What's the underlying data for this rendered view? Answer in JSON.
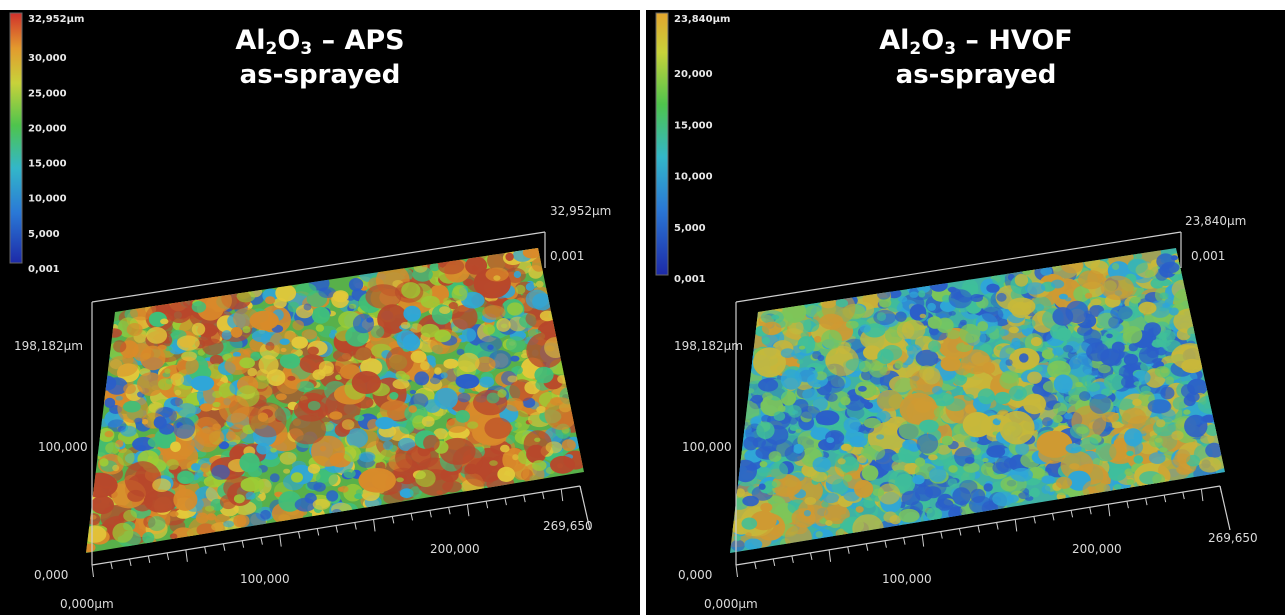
{
  "panels": [
    {
      "title_prefix": "Al",
      "title_sub1": "2",
      "title_mid": "O",
      "title_sub2": "3",
      "title_suffix": " – APS",
      "title_line2": "as-sprayed",
      "colorbar": {
        "max": "32,952µm",
        "ticks": [
          "30,000",
          "25,000",
          "20,000",
          "15,000",
          "10,000",
          "5,000",
          "0,001"
        ]
      },
      "axis": {
        "z_top": "32,952µm",
        "z_bottom": "0,001",
        "y_max": "198,182µm",
        "y_mid": "100,000",
        "y_min": "0,000",
        "x_origin": "0,000µm",
        "x_mid": "100,000",
        "x_200": "200,000",
        "x_max": "269,650"
      },
      "surface_palette": [
        "#2b5fc9",
        "#2fa6d8",
        "#3fbf7a",
        "#9dcc35",
        "#e3c83a",
        "#d98a2a",
        "#b8472b"
      ],
      "surface_mean_level": 0.55
    },
    {
      "title_prefix": "Al",
      "title_sub1": "2",
      "title_mid": "O",
      "title_sub2": "3",
      "title_suffix": " – HVOF",
      "title_line2": "as-sprayed",
      "colorbar": {
        "max": "23,840µm",
        "ticks": [
          "20,000",
          "15,000",
          "10,000",
          "5,000",
          "0,001"
        ]
      },
      "axis": {
        "z_top": "23,840µm",
        "z_bottom": "0,001",
        "y_max": "198,182µm",
        "y_mid": "100,000",
        "y_min": "0,000",
        "x_origin": "0,000µm",
        "x_mid": "100,000",
        "x_200": "200,000",
        "x_max": "269,650"
      },
      "surface_palette": [
        "#2b5fc9",
        "#2fa6d8",
        "#3fbf9a",
        "#7cc65a",
        "#c8b83a",
        "#cf9a32"
      ],
      "surface_mean_level": 0.42
    }
  ]
}
